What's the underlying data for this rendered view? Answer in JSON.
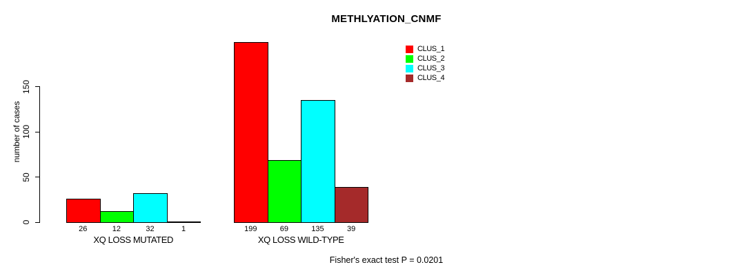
{
  "chart_data": {
    "type": "bar",
    "title": "METHLYATION_CNMF",
    "ylabel": "number of cases",
    "xlabel": "",
    "ylim": [
      0,
      205
    ],
    "yticks": [
      0,
      50,
      100,
      150
    ],
    "grid": false,
    "legend_position": "top-center-right",
    "categories": [
      "XQ LOSS MUTATED",
      "XQ LOSS WILD-TYPE"
    ],
    "series": [
      {
        "name": "CLUS_1",
        "color": "#FF0000",
        "values": [
          26,
          199
        ]
      },
      {
        "name": "CLUS_2",
        "color": "#00FF00",
        "values": [
          12,
          69
        ]
      },
      {
        "name": "CLUS_3",
        "color": "#00FFFF",
        "values": [
          32,
          135
        ]
      },
      {
        "name": "CLUS_4",
        "color": "#A52A2A",
        "values": [
          1,
          39
        ]
      }
    ],
    "bar_value_labels_shown": true,
    "annotation": "Fisher's exact test P = 0.0201"
  },
  "colors": {
    "background": "#FFFFFF",
    "axis": "#000000",
    "text": "#000000",
    "bar_border": "#000000"
  }
}
